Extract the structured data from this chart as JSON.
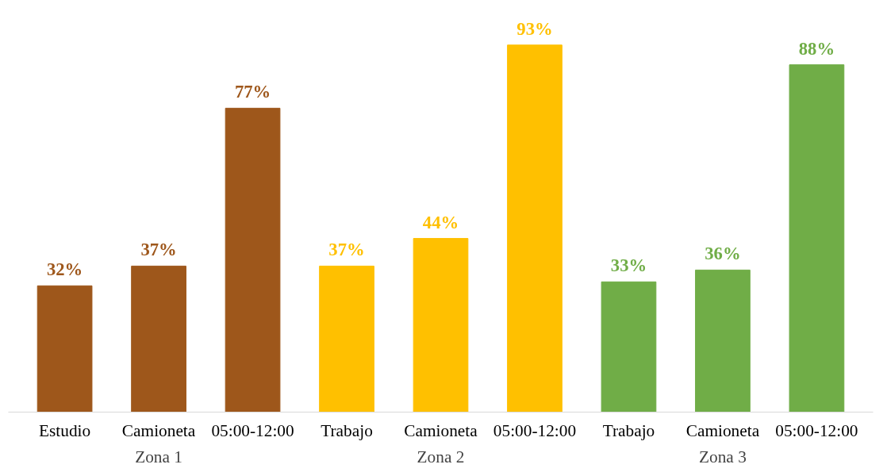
{
  "chart_data": {
    "type": "bar",
    "categories": [
      "Estudio",
      "Camioneta",
      "05:00-12:00",
      "Trabajo",
      "Camioneta",
      "05:00-12:00",
      "Trabajo",
      "Camioneta",
      "05:00-12:00"
    ],
    "values": [
      32,
      37,
      77,
      37,
      44,
      93,
      33,
      36,
      88
    ],
    "colors": [
      "#9e571b",
      "#9e571b",
      "#9e571b",
      "#ffc000",
      "#ffc000",
      "#ffc000",
      "#70ad47",
      "#70ad47",
      "#70ad47"
    ],
    "value_labels": [
      "32%",
      "37%",
      "77%",
      "37%",
      "44%",
      "93%",
      "33%",
      "36%",
      "88%"
    ],
    "grid": false,
    "annotations": [
      "Zona 1",
      "Zona 2",
      "Zona 3"
    ]
  }
}
